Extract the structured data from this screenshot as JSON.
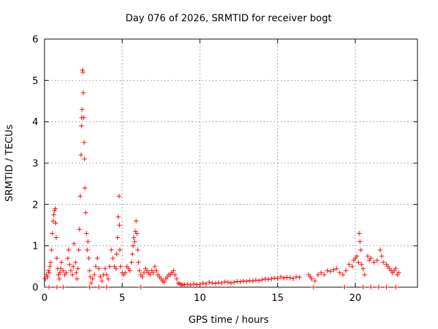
{
  "chart_data": {
    "type": "scatter",
    "title": "Day 076 of 2026, SRMTID for receiver bogt",
    "xlabel": "GPS time / hours",
    "ylabel": "SRMTID / TECUs",
    "xlim": [
      0,
      24
    ],
    "ylim": [
      0,
      6
    ],
    "xticks": [
      0,
      5,
      10,
      15,
      20
    ],
    "yticks": [
      0,
      1,
      2,
      3,
      4,
      5,
      6
    ],
    "grid": true,
    "marker": "+",
    "color": "#ff0000",
    "series": [
      {
        "name": "SRMTID",
        "points": [
          [
            0.05,
            0.2
          ],
          [
            0.12,
            0.3
          ],
          [
            0.2,
            0.25
          ],
          [
            0.25,
            0.4
          ],
          [
            0.3,
            0.35
          ],
          [
            0.35,
            0.5
          ],
          [
            0.4,
            0.6
          ],
          [
            0.45,
            0.9
          ],
          [
            0.5,
            1.3
          ],
          [
            0.55,
            1.6
          ],
          [
            0.6,
            1.75
          ],
          [
            0.65,
            1.85
          ],
          [
            0.7,
            1.9
          ],
          [
            0.72,
            1.55
          ],
          [
            0.75,
            1.2
          ],
          [
            0.8,
            0.7
          ],
          [
            0.85,
            0.45
          ],
          [
            0.9,
            0.3
          ],
          [
            0.95,
            0.2
          ],
          [
            1.0,
            0.35
          ],
          [
            1.05,
            0.45
          ],
          [
            1.1,
            0.6
          ],
          [
            1.2,
            0.4
          ],
          [
            1.3,
            0.3
          ],
          [
            1.4,
            0.35
          ],
          [
            1.5,
            0.7
          ],
          [
            1.55,
            0.9
          ],
          [
            1.6,
            0.55
          ],
          [
            1.7,
            0.4
          ],
          [
            1.8,
            0.3
          ],
          [
            1.85,
            0.5
          ],
          [
            1.9,
            1.05
          ],
          [
            2.0,
            0.6
          ],
          [
            2.05,
            0.35
          ],
          [
            2.1,
            0.2
          ],
          [
            2.15,
            0.45
          ],
          [
            2.2,
            0.9
          ],
          [
            2.25,
            1.4
          ],
          [
            2.3,
            2.2
          ],
          [
            2.35,
            3.2
          ],
          [
            2.38,
            3.9
          ],
          [
            2.4,
            4.1
          ],
          [
            2.42,
            4.3
          ],
          [
            2.45,
            5.25
          ],
          [
            2.47,
            5.2
          ],
          [
            2.5,
            4.7
          ],
          [
            2.52,
            4.1
          ],
          [
            2.55,
            3.5
          ],
          [
            2.58,
            3.1
          ],
          [
            2.6,
            2.4
          ],
          [
            2.65,
            1.8
          ],
          [
            2.7,
            1.3
          ],
          [
            2.75,
            0.9
          ],
          [
            2.8,
            1.1
          ],
          [
            2.85,
            0.7
          ],
          [
            2.9,
            0.4
          ],
          [
            2.95,
            0.25
          ],
          [
            3.0,
            0.1
          ],
          [
            3.1,
            0.2
          ],
          [
            3.2,
            0.3
          ],
          [
            3.3,
            0.5
          ],
          [
            3.4,
            0.7
          ],
          [
            3.5,
            0.45
          ],
          [
            3.6,
            0.25
          ],
          [
            3.7,
            0.15
          ],
          [
            3.8,
            0.3
          ],
          [
            3.9,
            0.45
          ],
          [
            4.0,
            0.3
          ],
          [
            4.1,
            0.2
          ],
          [
            4.2,
            0.5
          ],
          [
            4.3,
            0.9
          ],
          [
            4.4,
            0.7
          ],
          [
            4.5,
            0.5
          ],
          [
            4.6,
            0.45
          ],
          [
            4.65,
            0.8
          ],
          [
            4.7,
            1.2
          ],
          [
            4.75,
            1.7
          ],
          [
            4.8,
            2.2
          ],
          [
            4.82,
            1.5
          ],
          [
            4.85,
            0.9
          ],
          [
            4.9,
            0.5
          ],
          [
            5.0,
            0.35
          ],
          [
            5.1,
            0.3
          ],
          [
            5.2,
            0.35
          ],
          [
            5.3,
            0.5
          ],
          [
            5.4,
            0.45
          ],
          [
            5.5,
            0.4
          ],
          [
            5.6,
            0.6
          ],
          [
            5.65,
            0.8
          ],
          [
            5.7,
            1.0
          ],
          [
            5.75,
            1.2
          ],
          [
            5.8,
            1.1
          ],
          [
            5.85,
            1.35
          ],
          [
            5.9,
            1.6
          ],
          [
            5.95,
            1.3
          ],
          [
            6.0,
            0.9
          ],
          [
            6.05,
            0.6
          ],
          [
            6.1,
            0.4
          ],
          [
            6.2,
            0.3
          ],
          [
            6.3,
            0.25
          ],
          [
            6.4,
            0.35
          ],
          [
            6.5,
            0.45
          ],
          [
            6.6,
            0.4
          ],
          [
            6.7,
            0.35
          ],
          [
            6.8,
            0.3
          ],
          [
            6.9,
            0.4
          ],
          [
            7.0,
            0.35
          ],
          [
            7.1,
            0.5
          ],
          [
            7.2,
            0.4
          ],
          [
            7.3,
            0.3
          ],
          [
            7.4,
            0.25
          ],
          [
            7.5,
            0.2
          ],
          [
            7.6,
            0.15
          ],
          [
            7.7,
            0.12
          ],
          [
            7.8,
            0.2
          ],
          [
            7.9,
            0.25
          ],
          [
            8.0,
            0.3
          ],
          [
            8.1,
            0.3
          ],
          [
            8.2,
            0.35
          ],
          [
            8.3,
            0.4
          ],
          [
            8.4,
            0.3
          ],
          [
            8.5,
            0.2
          ],
          [
            8.6,
            0.1
          ],
          [
            8.7,
            0.08
          ],
          [
            8.8,
            0.06
          ],
          [
            8.9,
            0.05
          ],
          [
            9.0,
            0.06
          ],
          [
            9.2,
            0.07
          ],
          [
            9.4,
            0.05
          ],
          [
            9.6,
            0.08
          ],
          [
            9.8,
            0.06
          ],
          [
            10.0,
            0.07
          ],
          [
            10.2,
            0.1
          ],
          [
            10.4,
            0.08
          ],
          [
            10.6,
            0.12
          ],
          [
            10.8,
            0.1
          ],
          [
            11.0,
            0.09
          ],
          [
            11.2,
            0.11
          ],
          [
            11.4,
            0.1
          ],
          [
            11.6,
            0.13
          ],
          [
            11.8,
            0.12
          ],
          [
            12.0,
            0.1
          ],
          [
            12.2,
            0.12
          ],
          [
            12.4,
            0.14
          ],
          [
            12.6,
            0.13
          ],
          [
            12.8,
            0.15
          ],
          [
            13.0,
            0.14
          ],
          [
            13.2,
            0.16
          ],
          [
            13.4,
            0.15
          ],
          [
            13.6,
            0.17
          ],
          [
            13.8,
            0.16
          ],
          [
            14.0,
            0.18
          ],
          [
            14.2,
            0.2
          ],
          [
            14.4,
            0.19
          ],
          [
            14.6,
            0.2
          ],
          [
            14.8,
            0.22
          ],
          [
            15.0,
            0.21
          ],
          [
            15.2,
            0.25
          ],
          [
            15.4,
            0.22
          ],
          [
            15.6,
            0.24
          ],
          [
            15.8,
            0.23
          ],
          [
            16.0,
            0.21
          ],
          [
            16.2,
            0.25
          ],
          [
            16.4,
            0.24
          ],
          [
            17.0,
            0.3
          ],
          [
            17.1,
            0.25
          ],
          [
            17.2,
            0.2
          ],
          [
            17.4,
            0.15
          ],
          [
            17.6,
            0.3
          ],
          [
            17.8,
            0.35
          ],
          [
            18.0,
            0.3
          ],
          [
            18.2,
            0.4
          ],
          [
            18.4,
            0.38
          ],
          [
            18.6,
            0.42
          ],
          [
            18.8,
            0.45
          ],
          [
            19.0,
            0.35
          ],
          [
            19.2,
            0.3
          ],
          [
            19.4,
            0.4
          ],
          [
            19.6,
            0.55
          ],
          [
            19.8,
            0.5
          ],
          [
            19.9,
            0.65
          ],
          [
            20.0,
            0.7
          ],
          [
            20.1,
            0.75
          ],
          [
            20.2,
            0.6
          ],
          [
            20.25,
            1.3
          ],
          [
            20.3,
            1.1
          ],
          [
            20.35,
            0.9
          ],
          [
            20.4,
            0.55
          ],
          [
            20.5,
            0.45
          ],
          [
            20.6,
            0.3
          ],
          [
            20.8,
            0.75
          ],
          [
            20.9,
            0.65
          ],
          [
            21.0,
            0.7
          ],
          [
            21.2,
            0.6
          ],
          [
            21.4,
            0.65
          ],
          [
            21.6,
            0.9
          ],
          [
            21.7,
            0.75
          ],
          [
            21.8,
            0.6
          ],
          [
            22.0,
            0.55
          ],
          [
            22.1,
            0.5
          ],
          [
            22.2,
            0.45
          ],
          [
            22.3,
            0.4
          ],
          [
            22.4,
            0.35
          ],
          [
            22.5,
            0.4
          ],
          [
            22.6,
            0.45
          ],
          [
            22.7,
            0.3
          ],
          [
            22.8,
            0.35
          ],
          [
            0.3,
            0.0
          ],
          [
            0.8,
            0.0
          ],
          [
            1.2,
            0.0
          ],
          [
            2.9,
            0.0
          ],
          [
            3.5,
            0.0
          ],
          [
            4.0,
            0.0
          ],
          [
            6.2,
            0.0
          ],
          [
            17.3,
            0.0
          ],
          [
            19.3,
            0.0
          ],
          [
            20.5,
            0.0
          ],
          [
            21.0,
            0.0
          ],
          [
            21.5,
            0.0
          ],
          [
            22.0,
            0.0
          ],
          [
            22.6,
            0.0
          ]
        ]
      }
    ]
  }
}
